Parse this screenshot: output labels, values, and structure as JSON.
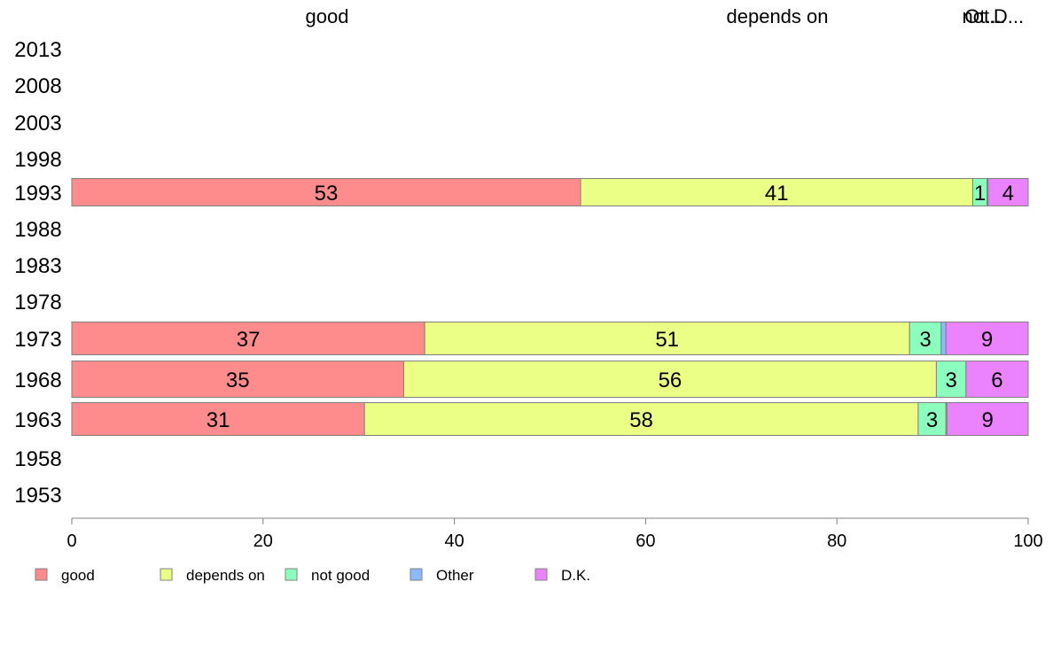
{
  "chart_data": {
    "type": "bar",
    "orientation": "horizontal",
    "stacked": true,
    "categories": [
      "2013",
      "2008",
      "2003",
      "1998",
      "1993",
      "1988",
      "1983",
      "1978",
      "1973",
      "1968",
      "1963",
      "1958",
      "1953"
    ],
    "series": [
      {
        "name": "good",
        "color": "#FF8C8C",
        "values": [
          null,
          null,
          null,
          null,
          53.2,
          null,
          null,
          null,
          36.9,
          34.7,
          30.6,
          null,
          null
        ]
      },
      {
        "name": "depends on",
        "color": "#EBFF87",
        "values": [
          null,
          null,
          null,
          null,
          41.0,
          null,
          null,
          null,
          50.7,
          55.7,
          57.9,
          null,
          null
        ]
      },
      {
        "name": "not good",
        "color": "#8CFFBE",
        "values": [
          null,
          null,
          null,
          null,
          1.5,
          null,
          null,
          null,
          3.3,
          3.1,
          2.9,
          null,
          null
        ]
      },
      {
        "name": "Other",
        "color": "#8CB9FF",
        "values": [
          null,
          null,
          null,
          null,
          0.1,
          null,
          null,
          null,
          0.5,
          0.0,
          0.1,
          null,
          null
        ]
      },
      {
        "name": "D.K.",
        "color": "#EB82FF",
        "values": [
          null,
          null,
          null,
          null,
          4.2,
          null,
          null,
          null,
          8.6,
          6.5,
          8.5,
          null,
          null
        ]
      }
    ],
    "segment_labels": {
      "1993": [
        "53",
        "41",
        "1",
        "",
        "4"
      ],
      "1973": [
        "37",
        "51",
        "3",
        "",
        "9"
      ],
      "1968": [
        "35",
        "56",
        "3",
        "",
        "6"
      ],
      "1963": [
        "31",
        "58",
        "3",
        "",
        "9"
      ]
    },
    "top_labels": [
      "good",
      "depends on",
      "not...",
      "Ot...",
      "D..."
    ],
    "xticks": [
      "0",
      "20",
      "40",
      "60",
      "80",
      "100"
    ],
    "xlim": [
      0,
      100
    ],
    "xlabel": "",
    "ylabel": "",
    "title": "",
    "grid": false,
    "legend": {
      "position": "bottom-left",
      "items": [
        "good",
        "depends on",
        "not good",
        "Other",
        "D.K."
      ]
    }
  }
}
